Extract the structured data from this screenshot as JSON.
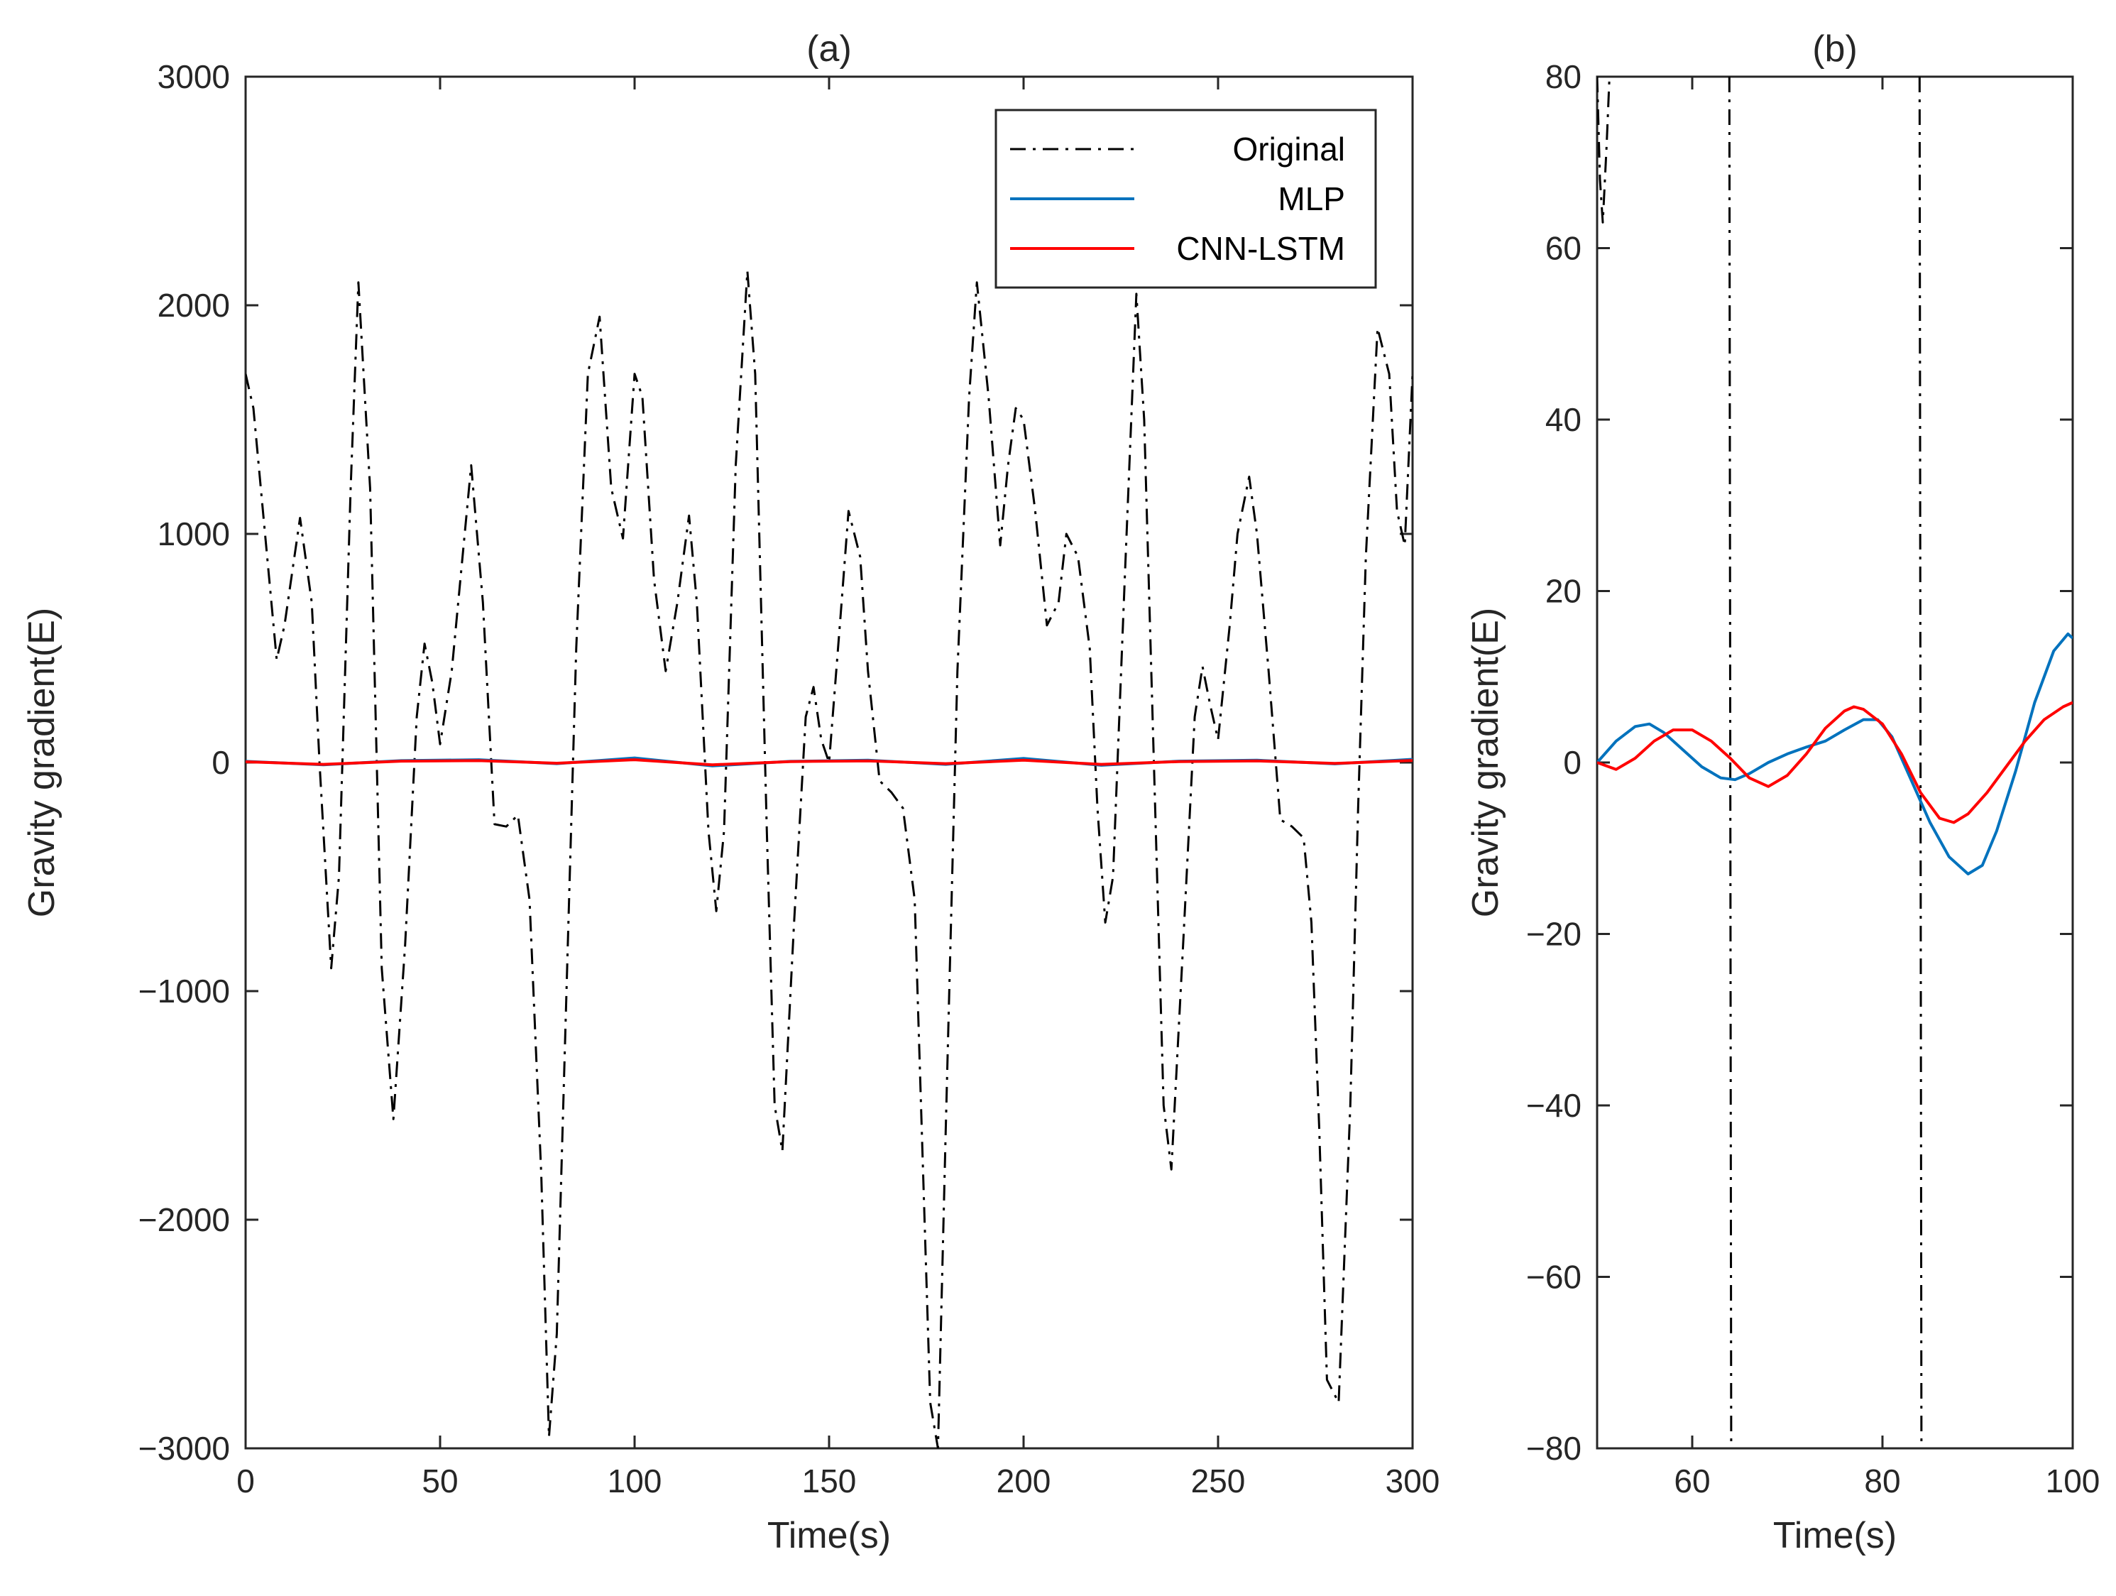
{
  "chart_data": [
    {
      "type": "line",
      "title": "(a)",
      "xlabel": "Time(s)",
      "ylabel": "Gravity gradient(E)",
      "xlim": [
        0,
        300
      ],
      "ylim": [
        -3000,
        3000
      ],
      "xticks": [
        0,
        50,
        100,
        150,
        200,
        250,
        300
      ],
      "yticks": [
        -3000,
        -2000,
        -1000,
        0,
        1000,
        2000,
        3000
      ],
      "xtick_labels": [
        "0",
        "50",
        "100",
        "150",
        "200",
        "250",
        "300"
      ],
      "ytick_labels": [
        "−3000",
        "−2000",
        "−1000",
        "0",
        "1000",
        "2000",
        "3000"
      ],
      "legend": {
        "position": "top-right",
        "entries": [
          "Original",
          "MLP",
          "CNN-LSTM"
        ]
      },
      "series": [
        {
          "name": "Original",
          "color": "#000000",
          "style": "dash-dot",
          "x": [
            0,
            2,
            5,
            8,
            10,
            14,
            17,
            19,
            22,
            24,
            27,
            29,
            32,
            35,
            38,
            41,
            44,
            46,
            48,
            50,
            53,
            58,
            61,
            64,
            67,
            70,
            73,
            76,
            78,
            80,
            83,
            85,
            88,
            91,
            94,
            97,
            100,
            102,
            105,
            108,
            111,
            114,
            116,
            119,
            121,
            123,
            126,
            129,
            131,
            134,
            136,
            138,
            141,
            144,
            146,
            148,
            150,
            153,
            155,
            158,
            160,
            163,
            166,
            169,
            172,
            174,
            176,
            178,
            180,
            183,
            186,
            188,
            191,
            194,
            196,
            198,
            200,
            203,
            206,
            209,
            211,
            214,
            217,
            219,
            221,
            223,
            226,
            229,
            231,
            234,
            236,
            238,
            241,
            244,
            246,
            248,
            250,
            253,
            255,
            258,
            260,
            263,
            266,
            269,
            272,
            274,
            276,
            278,
            281,
            284,
            286,
            288,
            291,
            294,
            296,
            298,
            300
          ],
          "values": [
            1700,
            1550,
            1000,
            450,
            600,
            1070,
            700,
            0,
            -900,
            -500,
            1200,
            2100,
            1200,
            -900,
            -1560,
            -800,
            200,
            520,
            350,
            80,
            400,
            1300,
            700,
            -270,
            -280,
            -230,
            -600,
            -1800,
            -2950,
            -2500,
            -700,
            500,
            1700,
            1950,
            1200,
            980,
            1700,
            1600,
            800,
            400,
            700,
            1080,
            700,
            -300,
            -650,
            -300,
            1300,
            2150,
            1700,
            -300,
            -1500,
            -1700,
            -700,
            200,
            330,
            100,
            0,
            650,
            1100,
            900,
            400,
            -80,
            -130,
            -200,
            -600,
            -1700,
            -2800,
            -3000,
            -1600,
            400,
            1600,
            2100,
            1600,
            950,
            1300,
            1550,
            1500,
            1100,
            600,
            700,
            1000,
            900,
            500,
            -200,
            -700,
            -500,
            800,
            2050,
            1500,
            -300,
            -1500,
            -1780,
            -800,
            200,
            420,
            250,
            100,
            600,
            1000,
            1250,
            1000,
            400,
            -250,
            -280,
            -330,
            -700,
            -1600,
            -2700,
            -2800,
            -1500,
            -200,
            900,
            1900,
            1700,
            1100,
            950,
            1700
          ]
        },
        {
          "name": "MLP",
          "color": "#0072BD",
          "style": "solid",
          "x": [
            0,
            20,
            40,
            60,
            80,
            100,
            120,
            140,
            160,
            180,
            200,
            220,
            240,
            260,
            280,
            300
          ],
          "values": [
            5,
            -10,
            8,
            12,
            -5,
            20,
            -15,
            5,
            10,
            -8,
            18,
            -12,
            6,
            10,
            -6,
            14
          ]
        },
        {
          "name": "CNN-LSTM",
          "color": "#FF0000",
          "style": "solid",
          "x": [
            0,
            20,
            40,
            60,
            80,
            100,
            120,
            140,
            160,
            180,
            200,
            220,
            240,
            260,
            280,
            300
          ],
          "values": [
            3,
            -8,
            6,
            8,
            -3,
            12,
            -10,
            4,
            7,
            -5,
            10,
            -8,
            4,
            7,
            -4,
            9
          ]
        }
      ]
    },
    {
      "type": "line",
      "title": "(b)",
      "xlabel": "Time(s)",
      "ylabel": "Gravity gradient(E)",
      "xlim": [
        50,
        100
      ],
      "ylim": [
        -80,
        80
      ],
      "xticks": [
        60,
        80,
        100
      ],
      "yticks": [
        -80,
        -60,
        -40,
        -20,
        0,
        20,
        40,
        60,
        80
      ],
      "xtick_labels": [
        "60",
        "80",
        "100"
      ],
      "ytick_labels": [
        "−80",
        "−60",
        "−40",
        "−20",
        "0",
        "20",
        "40",
        "60",
        "80"
      ],
      "series": [
        {
          "name": "Original",
          "color": "#000000",
          "style": "dash-dot",
          "segments": [
            {
              "x": [
                50,
                50.3,
                50.6,
                51.0,
                51.3
              ],
              "values": [
                80,
                68,
                63,
                72,
                80
              ]
            },
            {
              "x": [
                63.9,
                64.1
              ],
              "values": [
                80,
                -80
              ]
            },
            {
              "x": [
                83.9,
                84.1
              ],
              "values": [
                80,
                -80
              ]
            }
          ]
        },
        {
          "name": "MLP",
          "color": "#0072BD",
          "style": "solid",
          "x": [
            50,
            52,
            54,
            55.5,
            57,
            59,
            61,
            63,
            64.5,
            66,
            68,
            70,
            72,
            74,
            76,
            78,
            79.5,
            81,
            83,
            85,
            87,
            89,
            90.5,
            92,
            94,
            96,
            98,
            99.5,
            100
          ],
          "values": [
            0,
            2.5,
            4.2,
            4.5,
            3.5,
            1.5,
            -0.5,
            -1.8,
            -2.0,
            -1.3,
            0,
            1.0,
            1.8,
            2.5,
            3.8,
            5.0,
            5.0,
            3.0,
            -2,
            -7,
            -11,
            -13,
            -12,
            -8,
            -1,
            7,
            13,
            15,
            14.5
          ]
        },
        {
          "name": "CNN-LSTM",
          "color": "#FF0000",
          "style": "solid",
          "x": [
            50,
            52,
            54,
            56,
            58,
            60,
            62,
            64,
            66,
            68,
            70,
            72,
            74,
            76,
            77,
            78,
            80,
            82,
            84,
            86,
            87.5,
            89,
            91,
            93,
            95,
            97,
            99,
            100
          ],
          "values": [
            0,
            -0.8,
            0.5,
            2.5,
            3.8,
            3.8,
            2.5,
            0.5,
            -1.8,
            -2.8,
            -1.5,
            1,
            4,
            6,
            6.5,
            6.2,
            4.5,
            1,
            -3.5,
            -6.5,
            -7,
            -6,
            -3.5,
            -0.5,
            2.5,
            5,
            6.5,
            7
          ]
        }
      ]
    }
  ]
}
